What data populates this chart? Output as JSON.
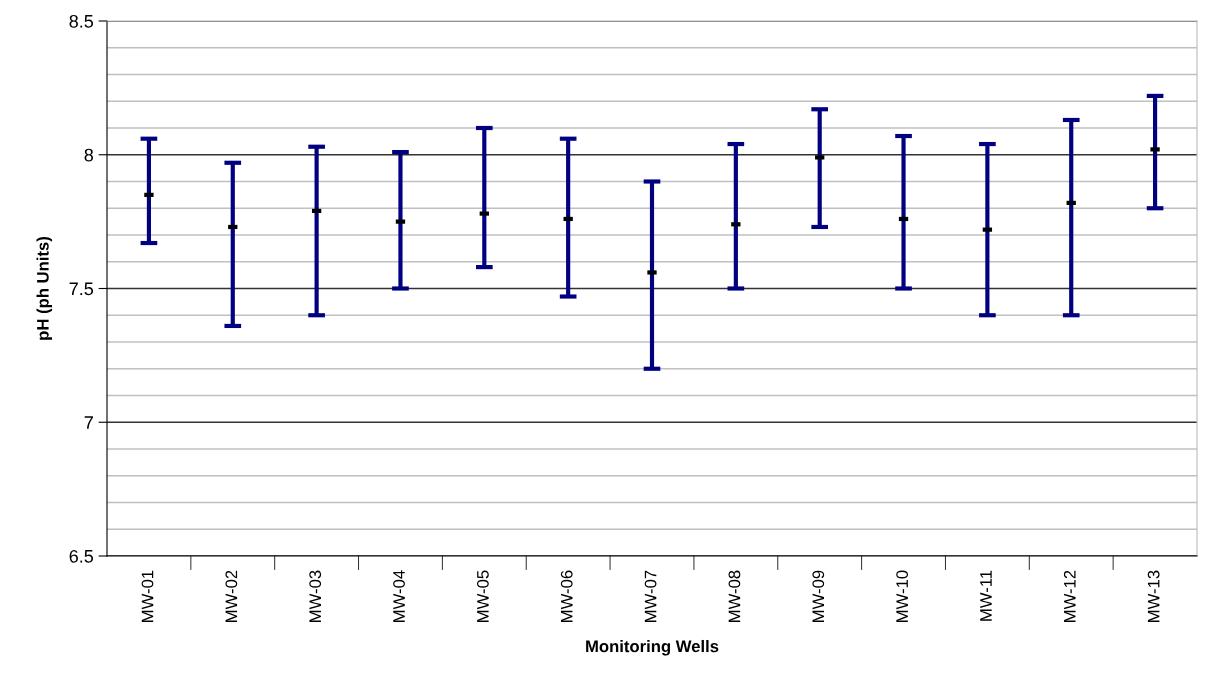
{
  "chart_data": {
    "type": "scatter",
    "xlabel": "Monitoring Wells",
    "ylabel": "pH (ph Units)",
    "categories": [
      "MW-01",
      "MW-02",
      "MW-03",
      "MW-04",
      "MW-05",
      "MW-06",
      "MW-07",
      "MW-08",
      "MW-09",
      "MW-10",
      "MW-11",
      "MW-12",
      "MW-13"
    ],
    "series": [
      {
        "color": "#000000",
        "values": [
          7.85,
          7.73,
          7.79,
          7.75,
          7.78,
          7.76,
          7.56,
          7.74,
          7.99,
          7.76,
          7.72,
          7.82,
          8.02
        ],
        "errors": [
          [
            7.67,
            8.06
          ],
          [
            7.36,
            7.97
          ],
          [
            7.4,
            8.03
          ],
          [
            7.5,
            8.01
          ],
          [
            7.58,
            8.1
          ],
          [
            7.47,
            8.06
          ],
          [
            7.2,
            7.9
          ],
          [
            7.5,
            8.04
          ],
          [
            7.73,
            8.17
          ],
          [
            7.5,
            8.07
          ],
          [
            7.4,
            8.04
          ],
          [
            7.4,
            8.13
          ],
          [
            7.8,
            8.22
          ]
        ]
      }
    ],
    "ylim": [
      6.5,
      8.5
    ],
    "yticks": [
      6.5,
      {
        "value": 6.6,
        "label": null
      },
      {
        "value": 6.7,
        "label": null
      },
      {
        "value": 6.8,
        "label": null
      },
      {
        "value": 6.9,
        "label": null
      },
      7,
      {
        "value": 7.1,
        "label": null
      },
      {
        "value": 7.2,
        "label": null
      },
      {
        "value": 7.3,
        "label": null
      },
      {
        "value": 7.4,
        "label": null
      },
      7.5,
      {
        "value": 7.6,
        "label": null
      },
      {
        "value": 7.7,
        "label": null
      },
      {
        "value": 7.8,
        "label": null
      },
      {
        "value": 7.9,
        "label": null
      },
      8,
      {
        "value": 8.1,
        "label": null
      },
      {
        "value": 8.2,
        "label": null
      },
      {
        "value": 8.3,
        "label": null
      },
      {
        "value": 8.4,
        "label": null
      },
      8.5
    ],
    "grid": "y"
  }
}
